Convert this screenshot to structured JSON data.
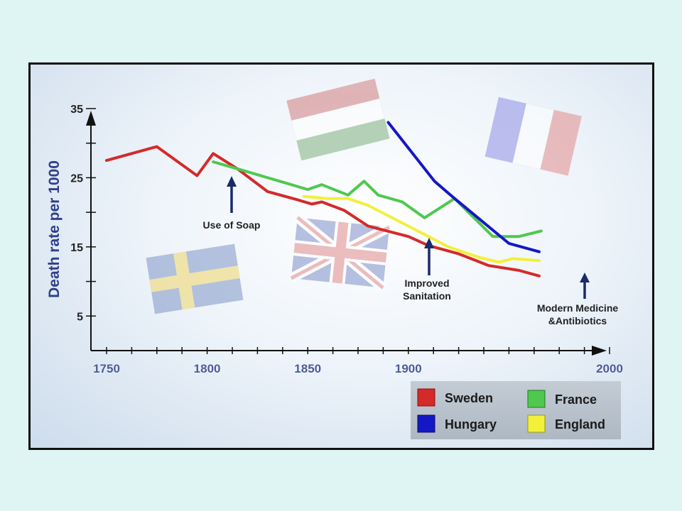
{
  "chart_data": {
    "type": "line",
    "ylabel": "Death rate per 1000",
    "xlabel": "",
    "title": "",
    "xlim": [
      1750,
      2000
    ],
    "ylim": [
      0,
      35
    ],
    "x_ticks": [
      "1750",
      "1800",
      "1850",
      "1900",
      "2000"
    ],
    "x_tick_values": [
      1750,
      1800,
      1850,
      1900,
      2000
    ],
    "y_ticks": [
      "35",
      "25",
      "15",
      "5"
    ],
    "y_tick_values": [
      35,
      25,
      15,
      5
    ],
    "legend_placement": "bottom-right",
    "series": [
      {
        "name": "Sweden",
        "color": "#d42a2a",
        "points": [
          [
            1750,
            27.5
          ],
          [
            1775,
            29.5
          ],
          [
            1795,
            25.3
          ],
          [
            1803,
            28.5
          ],
          [
            1815,
            26.3
          ],
          [
            1830,
            23.0
          ],
          [
            1845,
            21.8
          ],
          [
            1852,
            21.2
          ],
          [
            1857,
            21.5
          ],
          [
            1868,
            20.3
          ],
          [
            1880,
            18.0
          ],
          [
            1900,
            16.5
          ],
          [
            1910,
            15.2
          ],
          [
            1925,
            14.0
          ],
          [
            1940,
            12.3
          ],
          [
            1955,
            11.6
          ],
          [
            1965,
            10.8
          ]
        ]
      },
      {
        "name": "France",
        "color": "#4fc850",
        "points": [
          [
            1803,
            27.3
          ],
          [
            1815,
            26.3
          ],
          [
            1850,
            23.3
          ],
          [
            1857,
            24.0
          ],
          [
            1870,
            22.5
          ],
          [
            1878,
            24.5
          ],
          [
            1885,
            22.5
          ],
          [
            1897,
            21.5
          ],
          [
            1908,
            19.2
          ],
          [
            1923,
            22.0
          ],
          [
            1942,
            16.5
          ],
          [
            1955,
            16.5
          ],
          [
            1966,
            17.3
          ]
        ]
      },
      {
        "name": "Hungary",
        "color": "#1418c4",
        "points": [
          [
            1890,
            33.0
          ],
          [
            1913,
            24.5
          ],
          [
            1923,
            22.0
          ],
          [
            1950,
            15.5
          ],
          [
            1965,
            14.3
          ]
        ]
      },
      {
        "name": "England",
        "color": "#f2f03a",
        "points": [
          [
            1848,
            22.3
          ],
          [
            1860,
            22.0
          ],
          [
            1870,
            22.0
          ],
          [
            1880,
            21.0
          ],
          [
            1900,
            18.0
          ],
          [
            1920,
            15.0
          ],
          [
            1935,
            13.5
          ],
          [
            1945,
            12.8
          ],
          [
            1952,
            13.3
          ],
          [
            1965,
            13.0
          ]
        ]
      }
    ],
    "annotations": [
      {
        "text": "Use of Soap",
        "x": 1800
      },
      {
        "text": "Improved Sanitation",
        "x": 1879
      },
      {
        "text": "Modern Medicine &Antibiotics",
        "x": 1950
      }
    ]
  },
  "legend": {
    "items": [
      {
        "label": "Sweden",
        "color": "#d42a2a"
      },
      {
        "label": "Hungary",
        "color": "#1418c4"
      },
      {
        "label": "France",
        "color": "#4fc850"
      },
      {
        "label": "England",
        "color": "#f2f03a"
      }
    ]
  },
  "annotations": {
    "soap": "Use of Soap",
    "sanitation_line1": "Improved",
    "sanitation_line2": "Sanitation",
    "medicine_line1": "Modern Medicine",
    "medicine_line2": "&Antibiotics"
  },
  "flags": [
    "sweden-flag",
    "hungary-flag",
    "france-flag",
    "uk-flag"
  ]
}
